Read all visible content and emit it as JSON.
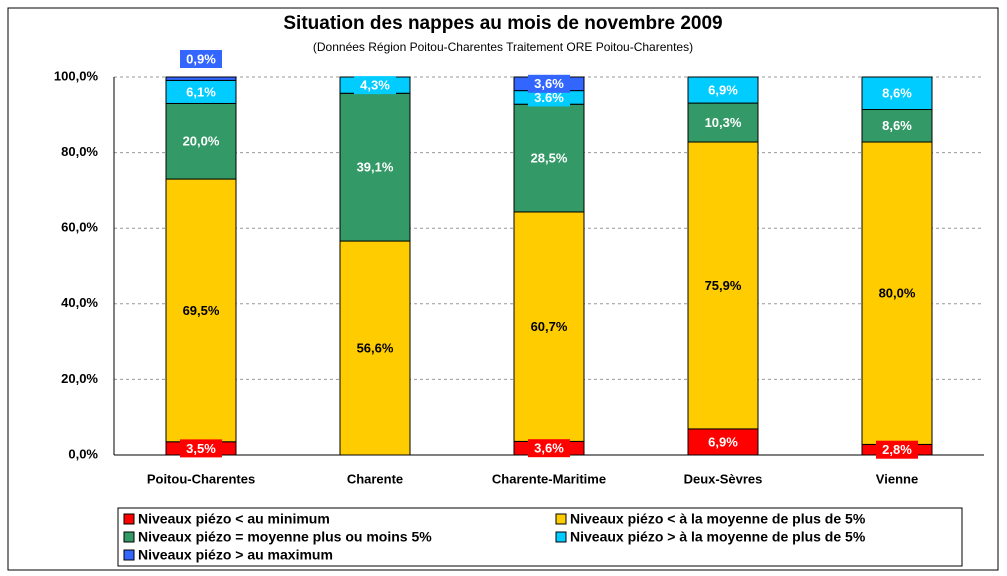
{
  "chart_data": {
    "type": "stacked_bar",
    "title": "Situation des nappes au mois de novembre 2009",
    "subtitle": "(Données Région Poitou-Charentes Traitement ORE Poitou-Charentes)",
    "categories": [
      "Poitou-Charentes",
      "Charente",
      "Charente-Maritime",
      "Deux-Sèvres",
      "Vienne"
    ],
    "series": [
      {
        "name": "Niveaux piézo < au minimum",
        "color": "#ff0000",
        "values": [
          3.5,
          0,
          3.6,
          6.9,
          2.8
        ],
        "value_labels": [
          "3,5%",
          null,
          "3,6%",
          "6,9%",
          "2,8%"
        ]
      },
      {
        "name": "Niveaux piézo < à la moyenne de plus de 5%",
        "color": "#ffcc00",
        "values": [
          69.5,
          56.6,
          60.7,
          75.9,
          80.0
        ],
        "value_labels": [
          "69,5%",
          "56,6%",
          "60,7%",
          "75,9%",
          "80,0%"
        ]
      },
      {
        "name": "Niveaux piézo = moyenne plus ou moins 5%",
        "color": "#339966",
        "values": [
          20.0,
          39.1,
          28.5,
          10.3,
          8.6
        ],
        "value_labels": [
          "20,0%",
          "39,1%",
          "28,5%",
          "10,3%",
          "8,6%"
        ]
      },
      {
        "name": "Niveaux piézo > à la moyenne de plus de 5%",
        "color": "#00ccff",
        "values": [
          6.1,
          4.3,
          3.6,
          6.9,
          8.6
        ],
        "value_labels": [
          "6,1%",
          "4,3%",
          "3.6%",
          "6,9%",
          "8,6%"
        ]
      },
      {
        "name": "Niveaux piézo > au maximum",
        "color": "#3366ff",
        "values": [
          0.9,
          0,
          3.6,
          0,
          0
        ],
        "value_labels": [
          "0,9%",
          null,
          "3,6%",
          null,
          null
        ]
      }
    ],
    "ylim": [
      0,
      100
    ],
    "yticks": [
      {
        "value": 0,
        "label": "0,0%"
      },
      {
        "value": 20,
        "label": "20,0%"
      },
      {
        "value": 40,
        "label": "40,0%"
      },
      {
        "value": 60,
        "label": "60,0%"
      },
      {
        "value": 80,
        "label": "80,0%"
      },
      {
        "value": 100,
        "label": "100,0%"
      }
    ],
    "grid": true,
    "legend": "bottom"
  }
}
